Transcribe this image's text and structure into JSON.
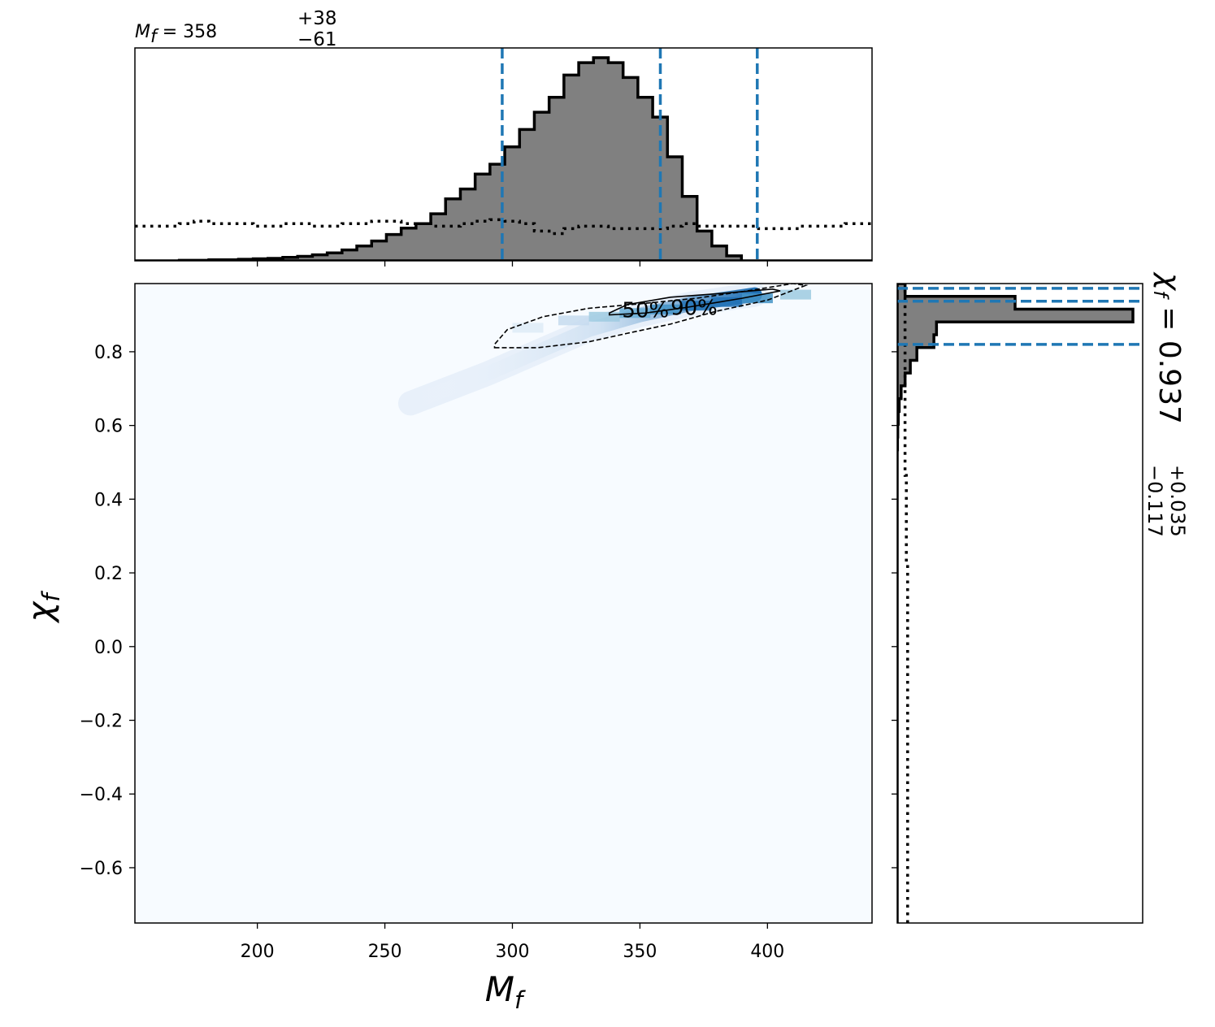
{
  "chart_data": [
    {
      "type": "area",
      "panel": "top-marginal",
      "title_parts": {
        "symbol": "M",
        "sub": "f",
        "eq": " = ",
        "value": "358",
        "plus": "+38",
        "minus": "−61"
      },
      "xlim": [
        152,
        441
      ],
      "x_ticks": [
        200,
        250,
        300,
        350,
        400
      ],
      "bin_width": 5.8,
      "bin_edges_start": 152,
      "posterior_counts": [
        0,
        0,
        0,
        0.1,
        0.1,
        0.2,
        0.2,
        0.3,
        0.4,
        0.5,
        0.7,
        0.9,
        1.2,
        1.6,
        2.2,
        3.0,
        4.0,
        5.3,
        6.6,
        7.5,
        9.5,
        12.5,
        14.5,
        17.5,
        19.5,
        23,
        26.5,
        30,
        33,
        37.5,
        40,
        41,
        40,
        37,
        33,
        29,
        21,
        13,
        6,
        3,
        1,
        0,
        0,
        0,
        0,
        0,
        0,
        0,
        0,
        0
      ],
      "prior_counts": [
        7,
        7,
        7,
        7.5,
        8,
        7.5,
        7.5,
        7.5,
        7,
        7,
        7.5,
        7.5,
        7,
        7,
        7.5,
        7.5,
        8,
        8,
        7.5,
        7.5,
        7,
        7,
        7.5,
        8,
        8.3,
        8,
        7.5,
        6,
        5.5,
        6.5,
        7,
        7,
        6.5,
        6.5,
        6.5,
        6.5,
        7,
        7.5,
        7,
        7,
        7,
        7,
        6.5,
        6.5,
        6.5,
        7,
        7,
        7,
        7.5,
        7.5
      ],
      "quantiles": [
        296,
        358,
        396
      ],
      "colors": {
        "fill": "#808080",
        "edge": "#000000",
        "quantile": "#1f77b4"
      }
    },
    {
      "type": "heatmap",
      "panel": "joint",
      "xlabel": "M",
      "xlabel_sub": "f",
      "ylabel": "χ",
      "ylabel_sub": "f",
      "xlim": [
        152,
        441
      ],
      "ylim": [
        -0.75,
        0.985
      ],
      "x_ticks": [
        200,
        250,
        300,
        350,
        400
      ],
      "x_tick_labels": [
        "200",
        "250",
        "300",
        "350",
        "400"
      ],
      "y_ticks": [
        0.8,
        0.6,
        0.4,
        0.2,
        0.0,
        -0.2,
        -0.4,
        -0.6
      ],
      "y_tick_labels": [
        "0.8",
        "0.6",
        "0.4",
        "0.2",
        "0.0",
        "−0.2",
        "−0.4",
        "−0.6"
      ],
      "contour_labels": [
        "50%",
        "90%"
      ],
      "contour_90": [
        [
          293,
          0.811
        ],
        [
          310,
          0.811
        ],
        [
          330,
          0.827
        ],
        [
          345,
          0.85
        ],
        [
          362,
          0.875
        ],
        [
          380,
          0.91
        ],
        [
          400,
          0.94
        ],
        [
          415,
          0.98
        ],
        [
          410,
          0.985
        ],
        [
          392,
          0.965
        ],
        [
          372,
          0.945
        ],
        [
          350,
          0.93
        ],
        [
          330,
          0.918
        ],
        [
          312,
          0.895
        ],
        [
          298,
          0.86
        ],
        [
          293,
          0.82
        ]
      ],
      "contour_50": [
        [
          338,
          0.9
        ],
        [
          352,
          0.905
        ],
        [
          368,
          0.92
        ],
        [
          390,
          0.945
        ],
        [
          405,
          0.965
        ],
        [
          402,
          0.97
        ],
        [
          385,
          0.96
        ],
        [
          362,
          0.948
        ],
        [
          345,
          0.928
        ],
        [
          338,
          0.905
        ]
      ],
      "density_ridge": [
        [
          260,
          0.66
        ],
        [
          290,
          0.74
        ],
        [
          310,
          0.8
        ],
        [
          330,
          0.86
        ],
        [
          350,
          0.9
        ],
        [
          370,
          0.93
        ],
        [
          395,
          0.955
        ]
      ],
      "colors": {
        "background": "#f7fbff",
        "cmap_low": "#f7fbff",
        "cmap_high": "#1f6fb4"
      }
    },
    {
      "type": "area",
      "panel": "right-marginal",
      "label_parts": {
        "symbol": "χ",
        "sub": "f",
        "eq": " = ",
        "value": "0.937",
        "plus": "+0.035",
        "minus": "−0.117"
      },
      "ylim": [
        -0.75,
        0.985
      ],
      "y_ticks": [
        0.8,
        0.6,
        0.4,
        0.2,
        0.0,
        -0.2,
        -0.4,
        -0.6
      ],
      "bin_edges_start": -0.75,
      "bin_width": 0.0347,
      "posterior_counts": [
        0,
        0,
        0,
        0,
        0,
        0,
        0,
        0,
        0,
        0,
        0,
        0,
        0,
        0,
        0,
        0,
        0,
        0,
        0,
        0,
        0,
        0,
        0,
        0,
        0,
        0,
        0,
        0,
        0,
        0,
        0,
        0,
        0,
        0,
        0,
        0,
        0,
        0.2,
        0.4,
        0.8,
        1.5,
        3,
        6,
        10,
        15,
        28,
        30,
        180,
        90,
        6
      ],
      "prior_counts": [
        4,
        4,
        4,
        4,
        4,
        4,
        4,
        4,
        4,
        4,
        4,
        4,
        4,
        4,
        4,
        4,
        4,
        4,
        4,
        4,
        4,
        4,
        4,
        4,
        4,
        4,
        4,
        4,
        3.5,
        3.5,
        3.5,
        3.5,
        3.5,
        3.5,
        3.5,
        3,
        3,
        3,
        3,
        3,
        3,
        3,
        3,
        3,
        3,
        3,
        3,
        3,
        3,
        3
      ],
      "quantiles": [
        0.82,
        0.937,
        0.972
      ],
      "colors": {
        "fill": "#808080",
        "edge": "#000000",
        "quantile": "#1f77b4"
      }
    }
  ]
}
